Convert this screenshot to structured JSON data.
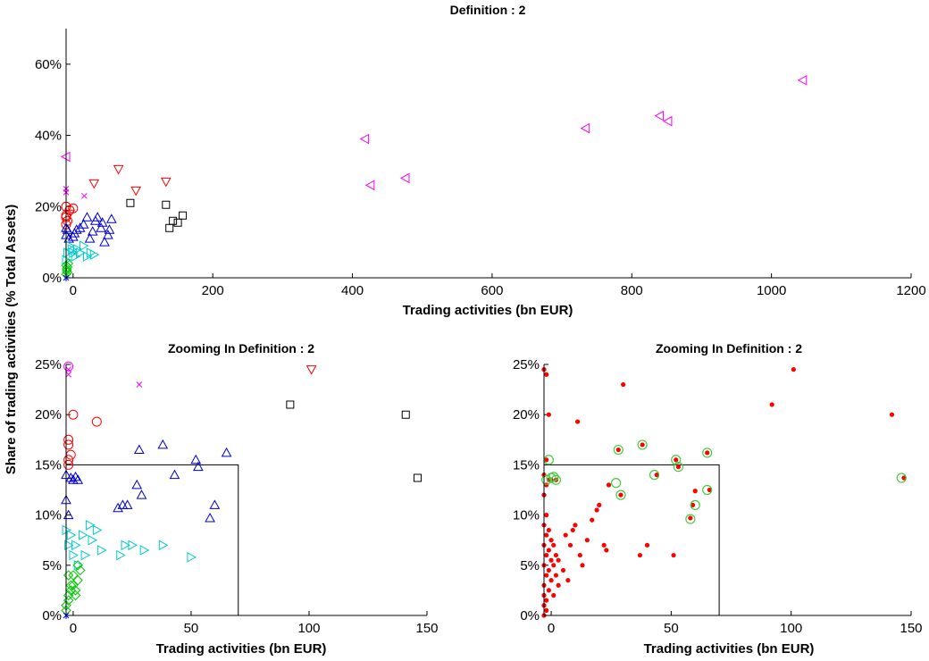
{
  "figure": {
    "shared_ylabel": "Share of trading activities (% Total Assets)"
  },
  "chart_data": [
    {
      "id": "top",
      "type": "scatter",
      "title": "Definition : 2",
      "xlabel": "Trading activities (bn EUR)",
      "ylabel": "Share of trading activities (% Total Assets)",
      "xlim": [
        -10,
        1200
      ],
      "ylim": [
        0,
        0.7
      ],
      "xticks": [
        0,
        200,
        400,
        600,
        800,
        1000,
        1200
      ],
      "xtick_labels": [
        "0",
        "200",
        "400",
        "600",
        "800",
        "1000",
        "1200"
      ],
      "yticks": [
        0,
        0.2,
        0.4,
        0.6
      ],
      "ytick_labels": [
        "0%",
        "20%",
        "40%",
        "60%"
      ],
      "grid": false,
      "series": [
        {
          "marker": "triangle-left",
          "color": "#ff00ff",
          "x": [
            -10,
            418,
            426,
            476,
            734,
            840,
            852,
            1045
          ],
          "y": [
            0.34,
            0.39,
            0.26,
            0.28,
            0.42,
            0.455,
            0.44,
            0.555
          ]
        },
        {
          "marker": "triangle-down",
          "color": "#ff0000",
          "x": [
            -5,
            30,
            65,
            90,
            133
          ],
          "y": [
            0.18,
            0.265,
            0.305,
            0.245,
            0.27
          ]
        },
        {
          "marker": "square",
          "color": "#000000",
          "x": [
            82,
            133,
            138,
            143,
            150,
            157
          ],
          "y": [
            0.21,
            0.205,
            0.14,
            0.16,
            0.155,
            0.175
          ]
        },
        {
          "marker": "x",
          "color": "#ff00ff",
          "x": [
            -10,
            -10,
            16
          ],
          "y": [
            0.24,
            0.25,
            0.23
          ]
        },
        {
          "marker": "circle",
          "color": "#ff0000",
          "x": [
            -10,
            -10,
            -10,
            -10,
            -8,
            -5,
            0
          ],
          "y": [
            0.15,
            0.175,
            0.17,
            0.2,
            0.16,
            0.19,
            0.195
          ]
        },
        {
          "marker": "triangle-up",
          "color": "#0000cc",
          "x": [
            -10,
            -10,
            -8,
            -6,
            0,
            2,
            5,
            10,
            15,
            20,
            24,
            28,
            32,
            35,
            40,
            42,
            45,
            50,
            52,
            55
          ],
          "y": [
            0.14,
            0.12,
            0.135,
            0.11,
            0.115,
            0.125,
            0.135,
            0.14,
            0.15,
            0.17,
            0.11,
            0.13,
            0.16,
            0.17,
            0.14,
            0.155,
            0.1,
            0.12,
            0.135,
            0.165
          ]
        },
        {
          "marker": "triangle-right",
          "color": "#00cccc",
          "x": [
            -10,
            -8,
            -5,
            -2,
            0,
            3,
            6,
            10,
            15,
            20,
            25,
            30
          ],
          "y": [
            0.05,
            0.07,
            0.09,
            0.08,
            0.07,
            0.06,
            0.08,
            0.07,
            0.09,
            0.06,
            0.07,
            0.065
          ]
        },
        {
          "marker": "diamond",
          "color": "#00cc00",
          "x": [
            -10,
            -9,
            -8,
            -7,
            -9,
            -10,
            -8
          ],
          "y": [
            0.01,
            0.02,
            0.03,
            0.04,
            0.025,
            0.035,
            0.015
          ]
        },
        {
          "marker": "star",
          "color": "#0000ff",
          "x": [
            -10
          ],
          "y": [
            0.0
          ]
        }
      ]
    },
    {
      "id": "bottom-left",
      "type": "scatter",
      "title": "Zooming In  Definition : 2",
      "xlabel": "Trading activities (bn EUR)",
      "ylabel": "Share of trading activities (% Total Assets)",
      "xlim": [
        -3,
        150
      ],
      "ylim": [
        0,
        0.25
      ],
      "xticks": [
        0,
        50,
        100,
        150
      ],
      "xtick_labels": [
        "0",
        "50",
        "100",
        "150"
      ],
      "yticks": [
        0,
        0.05,
        0.1,
        0.15,
        0.2,
        0.25
      ],
      "ytick_labels": [
        "0%",
        "5%",
        "10%",
        "15%",
        "20%",
        "25%"
      ],
      "grid": false,
      "highlight_box": {
        "x": [
          -3,
          70
        ],
        "y": [
          0,
          0.15
        ]
      },
      "series": [
        {
          "marker": "triangle-down",
          "color": "#ff0000",
          "x": [
            101
          ],
          "y": [
            0.245
          ]
        },
        {
          "marker": "x",
          "color": "#ff00ff",
          "x": [
            -2,
            -2,
            28
          ],
          "y": [
            0.245,
            0.24,
            0.23
          ]
        },
        {
          "marker": "square",
          "color": "#000000",
          "x": [
            92,
            141,
            146
          ],
          "y": [
            0.21,
            0.2,
            0.137
          ]
        },
        {
          "marker": "circle",
          "color": "#ff00ff",
          "x": [
            -2
          ],
          "y": [
            0.248
          ]
        },
        {
          "marker": "circle",
          "color": "#ff0000",
          "x": [
            -2,
            -2,
            -2,
            -2,
            -1,
            0,
            10
          ],
          "y": [
            0.15,
            0.17,
            0.175,
            0.155,
            0.16,
            0.2,
            0.193
          ]
        },
        {
          "marker": "triangle-up",
          "color": "#0000cc",
          "x": [
            -3,
            -3,
            -2,
            -1,
            0,
            1,
            2,
            19,
            21,
            23,
            27,
            28,
            29,
            38,
            43,
            52,
            53,
            58,
            60,
            65
          ],
          "y": [
            0.14,
            0.115,
            0.1,
            0.137,
            0.135,
            0.138,
            0.135,
            0.107,
            0.11,
            0.11,
            0.13,
            0.165,
            0.12,
            0.17,
            0.14,
            0.155,
            0.148,
            0.097,
            0.11,
            0.162
          ]
        },
        {
          "marker": "triangle-right",
          "color": "#00cccc",
          "x": [
            -3,
            -2,
            -1,
            0,
            1,
            2,
            4,
            5,
            7,
            8,
            10,
            12,
            20,
            22,
            25,
            30,
            38,
            50
          ],
          "y": [
            0.085,
            0.07,
            0.08,
            0.06,
            0.07,
            0.05,
            0.08,
            0.06,
            0.09,
            0.075,
            0.085,
            0.065,
            0.06,
            0.07,
            0.07,
            0.065,
            0.07,
            0.058
          ]
        },
        {
          "marker": "diamond",
          "color": "#00cc00",
          "x": [
            -3,
            -2,
            -1,
            0,
            1,
            2,
            3,
            -2,
            -1,
            0,
            1,
            -3,
            -2,
            2
          ],
          "y": [
            0.01,
            0.02,
            0.03,
            0.04,
            0.025,
            0.035,
            0.045,
            0.015,
            0.025,
            0.03,
            0.02,
            0.005,
            0.04,
            0.05
          ]
        },
        {
          "marker": "star",
          "color": "#0000ff",
          "x": [
            -3
          ],
          "y": [
            0.0
          ]
        }
      ]
    },
    {
      "id": "bottom-right",
      "type": "scatter",
      "title": "Zooming In  Definition : 2",
      "xlabel": "Trading activities (bn EUR)",
      "ylabel": "",
      "xlim": [
        -3,
        150
      ],
      "ylim": [
        0,
        0.25
      ],
      "xticks": [
        0,
        50,
        100,
        150
      ],
      "xtick_labels": [
        "0",
        "50",
        "100",
        "150"
      ],
      "yticks": [
        0,
        0.05,
        0.1,
        0.15,
        0.2,
        0.25
      ],
      "ytick_labels": [
        "0%",
        "5%",
        "10%",
        "15%",
        "20%",
        "25%"
      ],
      "grid": false,
      "highlight_box": {
        "x": [
          -3,
          70
        ],
        "y": [
          0,
          0.15
        ]
      },
      "series": [
        {
          "marker": "dot",
          "color": "#ff0000",
          "x": [
            -3,
            -3,
            -3,
            -3,
            -3,
            -3,
            -3,
            -3,
            -3,
            -3,
            -2,
            -2,
            -2,
            -2,
            -2,
            -2,
            -2,
            -2,
            -2,
            -1,
            -1,
            -1,
            -1,
            -1,
            -1,
            0,
            0,
            0,
            0,
            1,
            1,
            1,
            2,
            2,
            2,
            3,
            3,
            5,
            6,
            7,
            8,
            9,
            10,
            11,
            12,
            13,
            15,
            17,
            19,
            20,
            22,
            23,
            24,
            28,
            29,
            30,
            37,
            38,
            40,
            44,
            51,
            52,
            53,
            58,
            59,
            60,
            65,
            66,
            92,
            101,
            142,
            147
          ],
          "y": [
            0.0,
            0.01,
            0.02,
            0.03,
            0.05,
            0.07,
            0.09,
            0.12,
            0.14,
            0.245,
            0.005,
            0.015,
            0.04,
            0.06,
            0.08,
            0.1,
            0.13,
            0.155,
            0.24,
            0.025,
            0.045,
            0.065,
            0.085,
            0.135,
            0.2,
            0.035,
            0.055,
            0.075,
            0.135,
            0.02,
            0.05,
            0.07,
            0.04,
            0.06,
            0.135,
            0.03,
            0.055,
            0.045,
            0.08,
            0.035,
            0.07,
            0.085,
            0.09,
            0.193,
            0.06,
            0.05,
            0.075,
            0.095,
            0.105,
            0.11,
            0.07,
            0.065,
            0.13,
            0.165,
            0.12,
            0.23,
            0.06,
            0.17,
            0.07,
            0.14,
            0.06,
            0.155,
            0.148,
            0.097,
            0.11,
            0.124,
            0.162,
            0.125,
            0.21,
            0.245,
            0.2,
            0.137
          ]
        },
        {
          "marker": "ring",
          "color": "#44cc44",
          "x": [
            -2,
            -1,
            0,
            1,
            2,
            27,
            28,
            29,
            38,
            43,
            52,
            53,
            58,
            60,
            65,
            65,
            146
          ],
          "y": [
            0.135,
            0.155,
            0.137,
            0.138,
            0.135,
            0.132,
            0.165,
            0.12,
            0.17,
            0.14,
            0.155,
            0.148,
            0.096,
            0.11,
            0.162,
            0.125,
            0.137
          ]
        }
      ]
    }
  ]
}
